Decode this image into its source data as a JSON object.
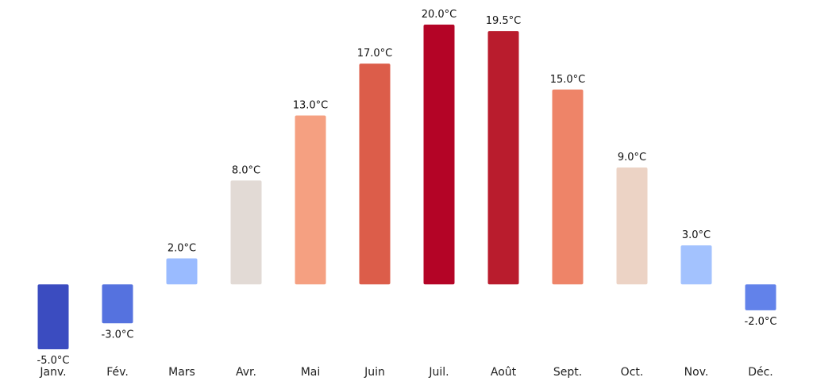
{
  "chart_data": {
    "type": "bar",
    "categories": [
      "Janv.",
      "Fév.",
      "Mars",
      "Avr.",
      "Mai",
      "Juin",
      "Juil.",
      "Août",
      "Sept.",
      "Oct.",
      "Nov.",
      "Déc."
    ],
    "values": [
      -5.0,
      -3.0,
      2.0,
      8.0,
      13.0,
      17.0,
      20.0,
      19.5,
      15.0,
      9.0,
      3.0,
      -2.0
    ],
    "value_labels": [
      "-5.0°C",
      "-3.0°C",
      "2.0°C",
      "8.0°C",
      "13.0°C",
      "17.0°C",
      "20.0°C",
      "19.5°C",
      "15.0°C",
      "9.0°C",
      "3.0°C",
      "-2.0°C"
    ],
    "colors": [
      "#3b4cc0",
      "#5572df",
      "#9abbff",
      "#e2dad5",
      "#f5a081",
      "#dc5d4a",
      "#b40426",
      "#b91c2d",
      "#ee8468",
      "#ecd3c5",
      "#a3c2fe",
      "#6282ea"
    ],
    "title": "",
    "xlabel": "",
    "ylabel": "",
    "ylim": [
      -5.0,
      20.0
    ],
    "grid": false,
    "axes_visible": false
  }
}
